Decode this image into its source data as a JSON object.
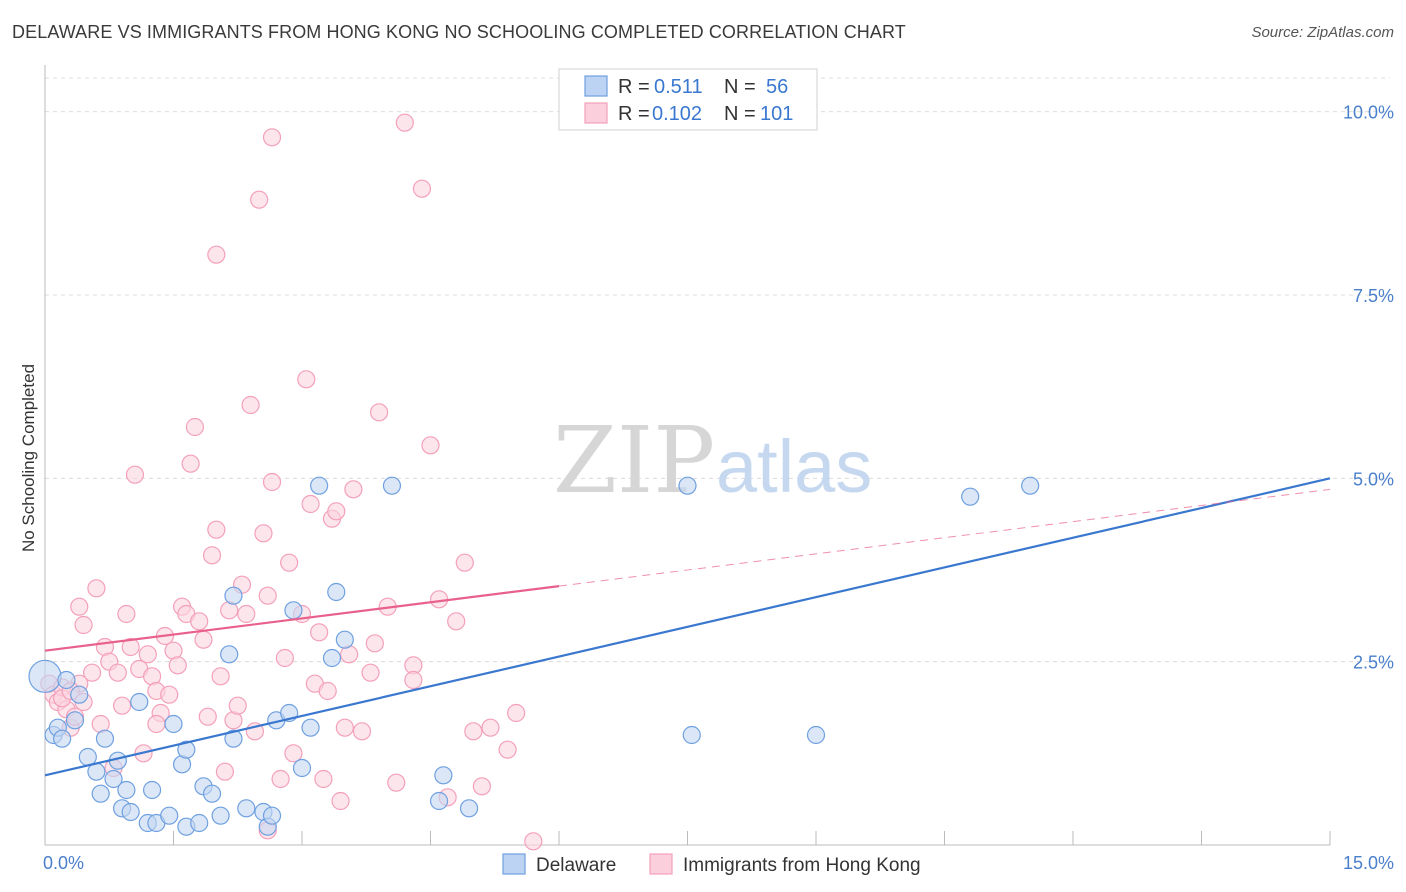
{
  "title": "DELAWARE VS IMMIGRANTS FROM HONG KONG NO SCHOOLING COMPLETED CORRELATION CHART",
  "source": "Source: ZipAtlas.com",
  "watermark": {
    "zip": "ZIP",
    "atlas": "atlas"
  },
  "chart_data": {
    "type": "scatter",
    "ylabel": "No Schooling Completed",
    "xlim": [
      0,
      15
    ],
    "ylim": [
      0,
      10.5
    ],
    "x_ticks": [
      0,
      15
    ],
    "x_tick_labels": [
      "0.0%",
      "15.0%"
    ],
    "y_ticks": [
      2.5,
      5.0,
      7.5,
      10.0
    ],
    "y_tick_labels": [
      "2.5%",
      "5.0%",
      "7.5%",
      "10.0%"
    ],
    "grid": "horizontal dashed",
    "legend_top": [
      {
        "series": "Delaware",
        "r_label": "R = ",
        "r_value": "0.511",
        "n_label": "N = ",
        "n_value": "56"
      },
      {
        "series": "Immigrants from Hong Kong",
        "r_label": "R = ",
        "r_value": "0.102",
        "n_label": "N = ",
        "n_value": "101"
      }
    ],
    "series": [
      {
        "name": "Delaware",
        "color": "#6fa0e0",
        "line_color": "#3a78d0",
        "trend": {
          "x": [
            0,
            15
          ],
          "y": [
            0.95,
            5.0
          ],
          "dashed_from": null
        },
        "points": [
          [
            0.0,
            2.3
          ],
          [
            0.1,
            1.5
          ],
          [
            0.15,
            1.6
          ],
          [
            0.2,
            1.45
          ],
          [
            0.25,
            2.25
          ],
          [
            0.35,
            1.7
          ],
          [
            0.4,
            2.05
          ],
          [
            0.5,
            1.2
          ],
          [
            0.6,
            1.0
          ],
          [
            0.65,
            0.7
          ],
          [
            0.7,
            1.45
          ],
          [
            0.8,
            0.9
          ],
          [
            0.85,
            1.15
          ],
          [
            0.9,
            0.5
          ],
          [
            0.95,
            0.75
          ],
          [
            1.0,
            0.45
          ],
          [
            1.1,
            1.95
          ],
          [
            1.2,
            0.3
          ],
          [
            1.25,
            0.75
          ],
          [
            1.3,
            0.3
          ],
          [
            1.45,
            0.4
          ],
          [
            1.5,
            1.65
          ],
          [
            1.6,
            1.1
          ],
          [
            1.65,
            0.25
          ],
          [
            1.65,
            1.3
          ],
          [
            1.8,
            0.3
          ],
          [
            1.85,
            0.8
          ],
          [
            1.95,
            0.7
          ],
          [
            2.05,
            0.4
          ],
          [
            2.15,
            2.6
          ],
          [
            2.2,
            3.4
          ],
          [
            2.2,
            1.45
          ],
          [
            2.35,
            0.5
          ],
          [
            2.55,
            0.45
          ],
          [
            2.6,
            0.25
          ],
          [
            2.65,
            0.4
          ],
          [
            2.7,
            1.7
          ],
          [
            2.85,
            1.8
          ],
          [
            2.9,
            3.2
          ],
          [
            3.0,
            1.05
          ],
          [
            3.1,
            1.6
          ],
          [
            3.2,
            4.9
          ],
          [
            3.35,
            2.55
          ],
          [
            3.4,
            3.45
          ],
          [
            3.5,
            2.8
          ],
          [
            4.05,
            4.9
          ],
          [
            4.6,
            0.6
          ],
          [
            4.65,
            0.95
          ],
          [
            4.95,
            0.5
          ],
          [
            7.5,
            4.9
          ],
          [
            7.55,
            1.5
          ],
          [
            9.0,
            1.5
          ],
          [
            10.8,
            4.75
          ],
          [
            11.5,
            4.9
          ]
        ]
      },
      {
        "name": "Immigrants from Hong Kong",
        "color": "#f4a0ba",
        "line_color": "#e8608c",
        "trend": {
          "x": [
            0,
            15
          ],
          "y": [
            2.65,
            4.85
          ],
          "solid_until_x": 6.0
        },
        "points": [
          [
            0.05,
            2.2
          ],
          [
            0.1,
            2.05
          ],
          [
            0.15,
            1.95
          ],
          [
            0.2,
            2.15
          ],
          [
            0.25,
            1.85
          ],
          [
            0.3,
            1.6
          ],
          [
            0.35,
            1.75
          ],
          [
            0.4,
            2.2
          ],
          [
            0.4,
            3.25
          ],
          [
            0.45,
            3.0
          ],
          [
            0.55,
            2.35
          ],
          [
            0.6,
            3.5
          ],
          [
            0.65,
            1.65
          ],
          [
            0.7,
            2.7
          ],
          [
            0.75,
            2.5
          ],
          [
            0.8,
            1.05
          ],
          [
            0.85,
            2.35
          ],
          [
            0.9,
            1.9
          ],
          [
            0.95,
            3.15
          ],
          [
            1.0,
            2.7
          ],
          [
            1.05,
            5.05
          ],
          [
            1.1,
            2.4
          ],
          [
            1.15,
            1.25
          ],
          [
            1.2,
            2.6
          ],
          [
            1.25,
            2.3
          ],
          [
            1.3,
            2.1
          ],
          [
            1.35,
            1.8
          ],
          [
            1.4,
            2.85
          ],
          [
            1.45,
            2.05
          ],
          [
            1.5,
            2.65
          ],
          [
            1.55,
            2.45
          ],
          [
            1.6,
            3.25
          ],
          [
            1.65,
            3.15
          ],
          [
            1.7,
            5.2
          ],
          [
            1.75,
            5.7
          ],
          [
            1.8,
            3.05
          ],
          [
            1.85,
            2.8
          ],
          [
            1.9,
            1.75
          ],
          [
            1.95,
            3.95
          ],
          [
            2.0,
            4.3
          ],
          [
            2.05,
            2.3
          ],
          [
            2.1,
            1.0
          ],
          [
            2.15,
            3.2
          ],
          [
            2.2,
            1.7
          ],
          [
            2.25,
            1.9
          ],
          [
            2.3,
            3.55
          ],
          [
            2.35,
            3.15
          ],
          [
            2.4,
            6.0
          ],
          [
            2.45,
            1.55
          ],
          [
            2.5,
            8.8
          ],
          [
            2.55,
            4.25
          ],
          [
            2.6,
            0.2
          ],
          [
            2.65,
            4.95
          ],
          [
            2.75,
            0.9
          ],
          [
            2.8,
            2.55
          ],
          [
            2.85,
            3.85
          ],
          [
            2.9,
            1.25
          ],
          [
            3.0,
            3.15
          ],
          [
            3.05,
            6.35
          ],
          [
            3.1,
            4.65
          ],
          [
            3.15,
            2.2
          ],
          [
            3.2,
            2.9
          ],
          [
            3.25,
            0.9
          ],
          [
            3.3,
            2.1
          ],
          [
            3.35,
            4.45
          ],
          [
            3.4,
            4.55
          ],
          [
            3.45,
            0.6
          ],
          [
            3.5,
            1.6
          ],
          [
            3.55,
            2.6
          ],
          [
            3.6,
            4.85
          ],
          [
            3.7,
            1.55
          ],
          [
            3.8,
            2.35
          ],
          [
            3.85,
            2.75
          ],
          [
            3.9,
            5.9
          ],
          [
            4.0,
            3.25
          ],
          [
            4.1,
            0.85
          ],
          [
            4.2,
            9.85
          ],
          [
            4.3,
            2.45
          ],
          [
            4.4,
            8.95
          ],
          [
            4.5,
            5.45
          ],
          [
            4.6,
            3.35
          ],
          [
            4.7,
            0.65
          ],
          [
            4.8,
            3.05
          ],
          [
            4.9,
            3.85
          ],
          [
            5.0,
            1.55
          ],
          [
            5.1,
            0.8
          ],
          [
            5.2,
            1.6
          ],
          [
            5.4,
            1.3
          ],
          [
            5.5,
            1.8
          ],
          [
            2.65,
            9.65
          ],
          [
            2.0,
            8.05
          ],
          [
            0.2,
            2.0
          ],
          [
            0.3,
            2.1
          ],
          [
            5.7,
            0.05
          ],
          [
            1.3,
            1.65
          ],
          [
            0.45,
            1.95
          ],
          [
            2.6,
            3.4
          ],
          [
            4.3,
            2.25
          ]
        ]
      }
    ]
  },
  "bottom_legend": [
    {
      "label": "Delaware"
    },
    {
      "label": "Immigrants from Hong Kong"
    }
  ]
}
